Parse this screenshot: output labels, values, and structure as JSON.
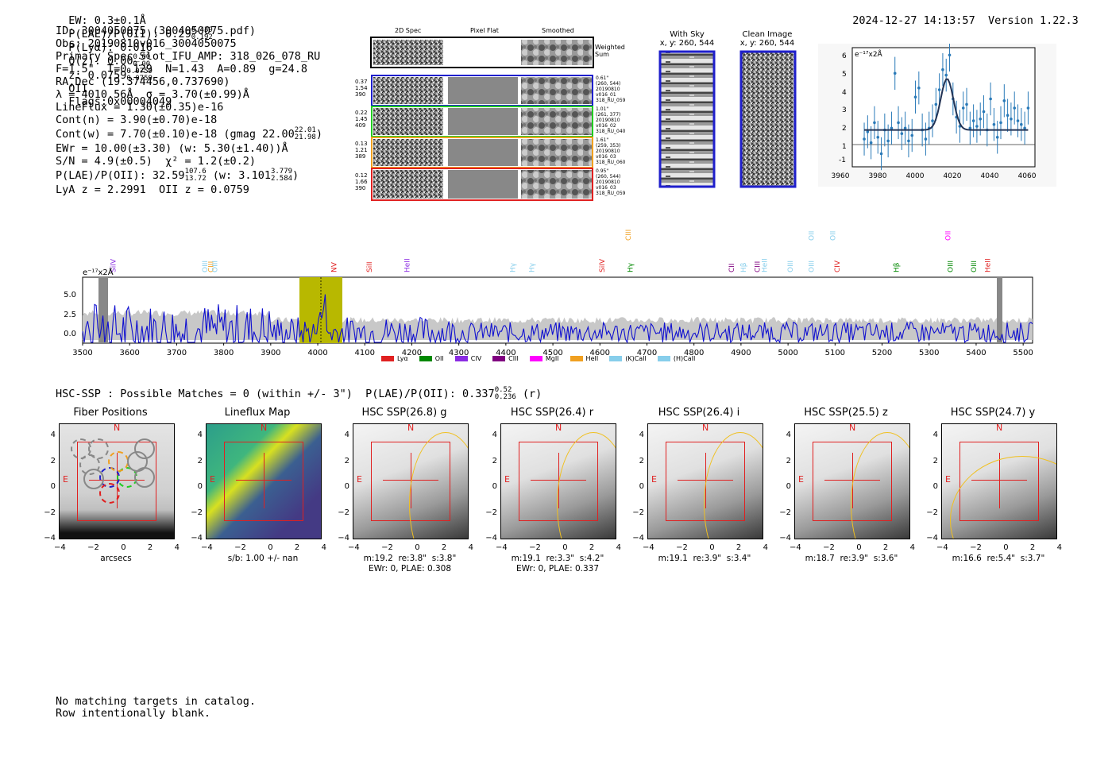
{
  "header": {
    "ew": "EW: 0.3±0.1Å",
    "plae_label": "P(LAE)/P(OII): 0.29",
    "plae_hi": "0.439",
    "plae_lo": "0.192",
    "plya": "P(Lyα): 0.016",
    "qz_label": "Q(z): 0.00",
    "qz_hi": "0.00",
    "qz_lo": "0.00",
    "z_label": "z: 0.0759",
    "z_hi": "0.0759",
    "z_lo": "0.0759",
    "z_line": "OII",
    "flags": "Flags:0x00004049",
    "timestamp": "2024-12-27 14:13:57",
    "version": "Version 1.22.3"
  },
  "info": {
    "id": "ID: 3004050075 (3004050075.pdf)",
    "obs": "Obs: 20190810v016_3004050075",
    "spec": "Primary Spec_Slot_IFU_AMP: 318_026_078_RU",
    "fwhm": "F=1.5\"  T=0.129  N=1.43  A=0.89  g=24.8",
    "radec": "RA,Dec (19.374456,0.737690)",
    "lambda": "λ = 4010.56Å  σ = 3.70(±0.99)Å",
    "lineflux": "LineFlux = 1.30(±0.35)e-16",
    "contn": "Cont(n) = 3.90(±0.70)e-18",
    "contw": "Cont(w) = 7.70(±0.10)e-18 (gmag 22.00",
    "gmag_hi": "22.01",
    "gmag_lo": "21.98",
    "contw_end": ")",
    "ewr": "EWr = 10.00(±3.30) (w: 5.30(±1.40))Å",
    "sn": "S/N = 4.9(±0.5)  χ² = 1.2(±0.2)",
    "plae": "P(LAE)/P(OII): 32.59",
    "plae2_hi": "107.6",
    "plae2_lo": "13.72",
    "plae_w": "(w: 3.101",
    "plae_w_hi": "3.779",
    "plae_w_lo": "2.584",
    "plae_w_end": ")",
    "lyaz": "LyA z = 2.2991  OII z = 0.0759"
  },
  "cutouts": {
    "col_2d": "2D Spec",
    "col_flat": "Pixel Flat",
    "col_smooth": "Smoothed",
    "weighted": "Weighted Sum",
    "rows": [
      {
        "n1": "0.37",
        "n2": "1.54",
        "n3": "390",
        "r1": "0.61\"",
        "r2": "(260, 544)",
        "r3": "20190810",
        "r4": "v016_01",
        "r5": "318_RU_059",
        "color": "#1f1fcc"
      },
      {
        "n1": "0.22",
        "n2": "1.45",
        "n3": "409",
        "r1": "1.01\"",
        "r2": "(261, 377)",
        "r3": "20190810",
        "r4": "v016_02",
        "r5": "318_RU_040",
        "color": "#22cc22"
      },
      {
        "n1": "0.13",
        "n2": "1.21",
        "n3": "389",
        "r1": "1.61\"",
        "r2": "(259, 353)",
        "r3": "20190810",
        "r4": "v016_03",
        "r5": "318_RU_060",
        "color": "#f0a020"
      },
      {
        "n1": "0.12",
        "n2": "1.66",
        "n3": "390",
        "r1": "0.95\"",
        "r2": "(260, 544)",
        "r3": "20190810",
        "r4": "v016_03",
        "r5": "318_RU_059",
        "color": "#e02020"
      }
    ]
  },
  "sky": {
    "with_sky": "With Sky",
    "with_sky_xy": "x, y: 260, 544",
    "clean": "Clean Image",
    "clean_xy": "x, y: 260, 544"
  },
  "zoom_chart": {
    "ylabel": "e⁻¹⁷x2Å",
    "xticks": [
      "3960",
      "3980",
      "4000",
      "4020",
      "4040",
      "4060"
    ],
    "yticks": [
      "6",
      "5",
      "4",
      "3",
      "2",
      "1",
      "0",
      "-1"
    ]
  },
  "spectrum": {
    "ylabel": "e⁻¹⁷x2Å",
    "yticks": [
      "5.0",
      "2.5",
      "0.0"
    ],
    "xticks": [
      "3500",
      "3600",
      "3700",
      "3800",
      "3900",
      "4000",
      "4100",
      "4200",
      "4300",
      "4400",
      "4500",
      "4600",
      "4700",
      "4800",
      "4900",
      "5000",
      "5100",
      "5200",
      "5300",
      "5400",
      "5500"
    ],
    "lines": [
      {
        "label": "SiIV",
        "x": 3570,
        "color": "#8a2be2",
        "row": 0
      },
      {
        "label": "OIII",
        "x": 3765,
        "color": "#87ceeb",
        "row": 0
      },
      {
        "label": "CIII",
        "x": 3778,
        "color": "#f0a020",
        "row": 0
      },
      {
        "label": "OIII",
        "x": 3786,
        "color": "#87ceeb",
        "row": 0
      },
      {
        "label": "NV",
        "x": 4040,
        "color": "#e02020",
        "row": 0
      },
      {
        "label": "SiII",
        "x": 4115,
        "color": "#e02020",
        "row": 0
      },
      {
        "label": "HeII",
        "x": 4195,
        "color": "#8a2be2",
        "row": 0
      },
      {
        "label": "Hγ",
        "x": 4420,
        "color": "#87ceeb",
        "row": 0
      },
      {
        "label": "Hγ",
        "x": 4460,
        "color": "#87ceeb",
        "row": 0
      },
      {
        "label": "SiIV",
        "x": 4610,
        "color": "#e02020",
        "row": 0
      },
      {
        "label": "Hγ",
        "x": 4670,
        "color": "#008800",
        "row": 0
      },
      {
        "label": "CIII",
        "x": 4665,
        "color": "#f0a020",
        "row": 1
      },
      {
        "label": "CII",
        "x": 4885,
        "color": "#800080",
        "row": 0
      },
      {
        "label": "Hβ",
        "x": 4910,
        "color": "#87ceeb",
        "row": 0
      },
      {
        "label": "CIII",
        "x": 4940,
        "color": "#800080",
        "row": 0
      },
      {
        "label": "HeII",
        "x": 4955,
        "color": "#87ceeb",
        "row": 0
      },
      {
        "label": "OIII",
        "x": 5010,
        "color": "#87ceeb",
        "row": 0
      },
      {
        "label": "OIII",
        "x": 5055,
        "color": "#87ceeb",
        "row": 0
      },
      {
        "label": "CIV",
        "x": 5110,
        "color": "#e02020",
        "row": 0
      },
      {
        "label": "OII",
        "x": 5055,
        "color": "#87ceeb",
        "row": 1
      },
      {
        "label": "OII",
        "x": 5100,
        "color": "#87ceeb",
        "row": 1
      },
      {
        "label": "Hβ",
        "x": 5235,
        "color": "#008800",
        "row": 0
      },
      {
        "label": "OIII",
        "x": 5350,
        "color": "#008800",
        "row": 0
      },
      {
        "label": "OIII",
        "x": 5400,
        "color": "#008800",
        "row": 0
      },
      {
        "label": "HeII",
        "x": 5430,
        "color": "#e02020",
        "row": 0
      },
      {
        "label": "OII",
        "x": 5345,
        "color": "#ff00ff",
        "row": 1
      }
    ],
    "legend": [
      {
        "label": "Lyα",
        "color": "#e02020"
      },
      {
        "label": "OII",
        "color": "#008800"
      },
      {
        "label": "CIV",
        "color": "#8a2be2"
      },
      {
        "label": "CIII",
        "color": "#800080"
      },
      {
        "label": "MgII",
        "color": "#ff00ff"
      },
      {
        "label": "HeII",
        "color": "#f0a020"
      },
      {
        "label": "(K)CaII",
        "color": "#87ceeb"
      },
      {
        "label": "(H)CaII",
        "color": "#87ceeb"
      }
    ]
  },
  "hsc": {
    "title": "HSC-SSP : Possible Matches = 0 (within +/- 3\")  P(LAE)/P(OII): 0.337",
    "title_hi": "0.52",
    "title_lo": "0.236",
    "title_end": "(r)",
    "panels": [
      {
        "title": "Fiber Positions",
        "cap1": "arcsecs",
        "cap2": ""
      },
      {
        "title": "Lineflux Map",
        "cap1": "s/b: 1.00 +/- nan",
        "cap2": ""
      },
      {
        "title": "HSC SSP(26.8) g",
        "cap1": "m:19.2  re:3.8\"  s:3.8\"",
        "cap2": "EWr: 0, PLAE: 0.308"
      },
      {
        "title": "HSC SSP(26.4) r",
        "cap1": "m:19.1  re:3.3\"  s:4.2\"",
        "cap2": "EWr: 0, PLAE: 0.337"
      },
      {
        "title": "HSC SSP(26.4) i",
        "cap1": "m:19.1  re:3.9\"  s:3.4\"",
        "cap2": ""
      },
      {
        "title": "HSC SSP(25.5) z",
        "cap1": "m:18.7  re:3.9\"  s:3.6\"",
        "cap2": ""
      },
      {
        "title": "HSC SSP(24.7) y",
        "cap1": "m:16.6  re:5.4\"  s:3.7\"",
        "cap2": ""
      }
    ],
    "n_label": "N",
    "e_label": "E",
    "yticks": [
      "4",
      "2",
      "0",
      "−2",
      "−4"
    ],
    "xticks": [
      "−4",
      "−2",
      "0",
      "2",
      "4"
    ]
  },
  "footer": {
    "line1": "No matching targets in catalog.",
    "line2": "Row intentionally blank."
  }
}
